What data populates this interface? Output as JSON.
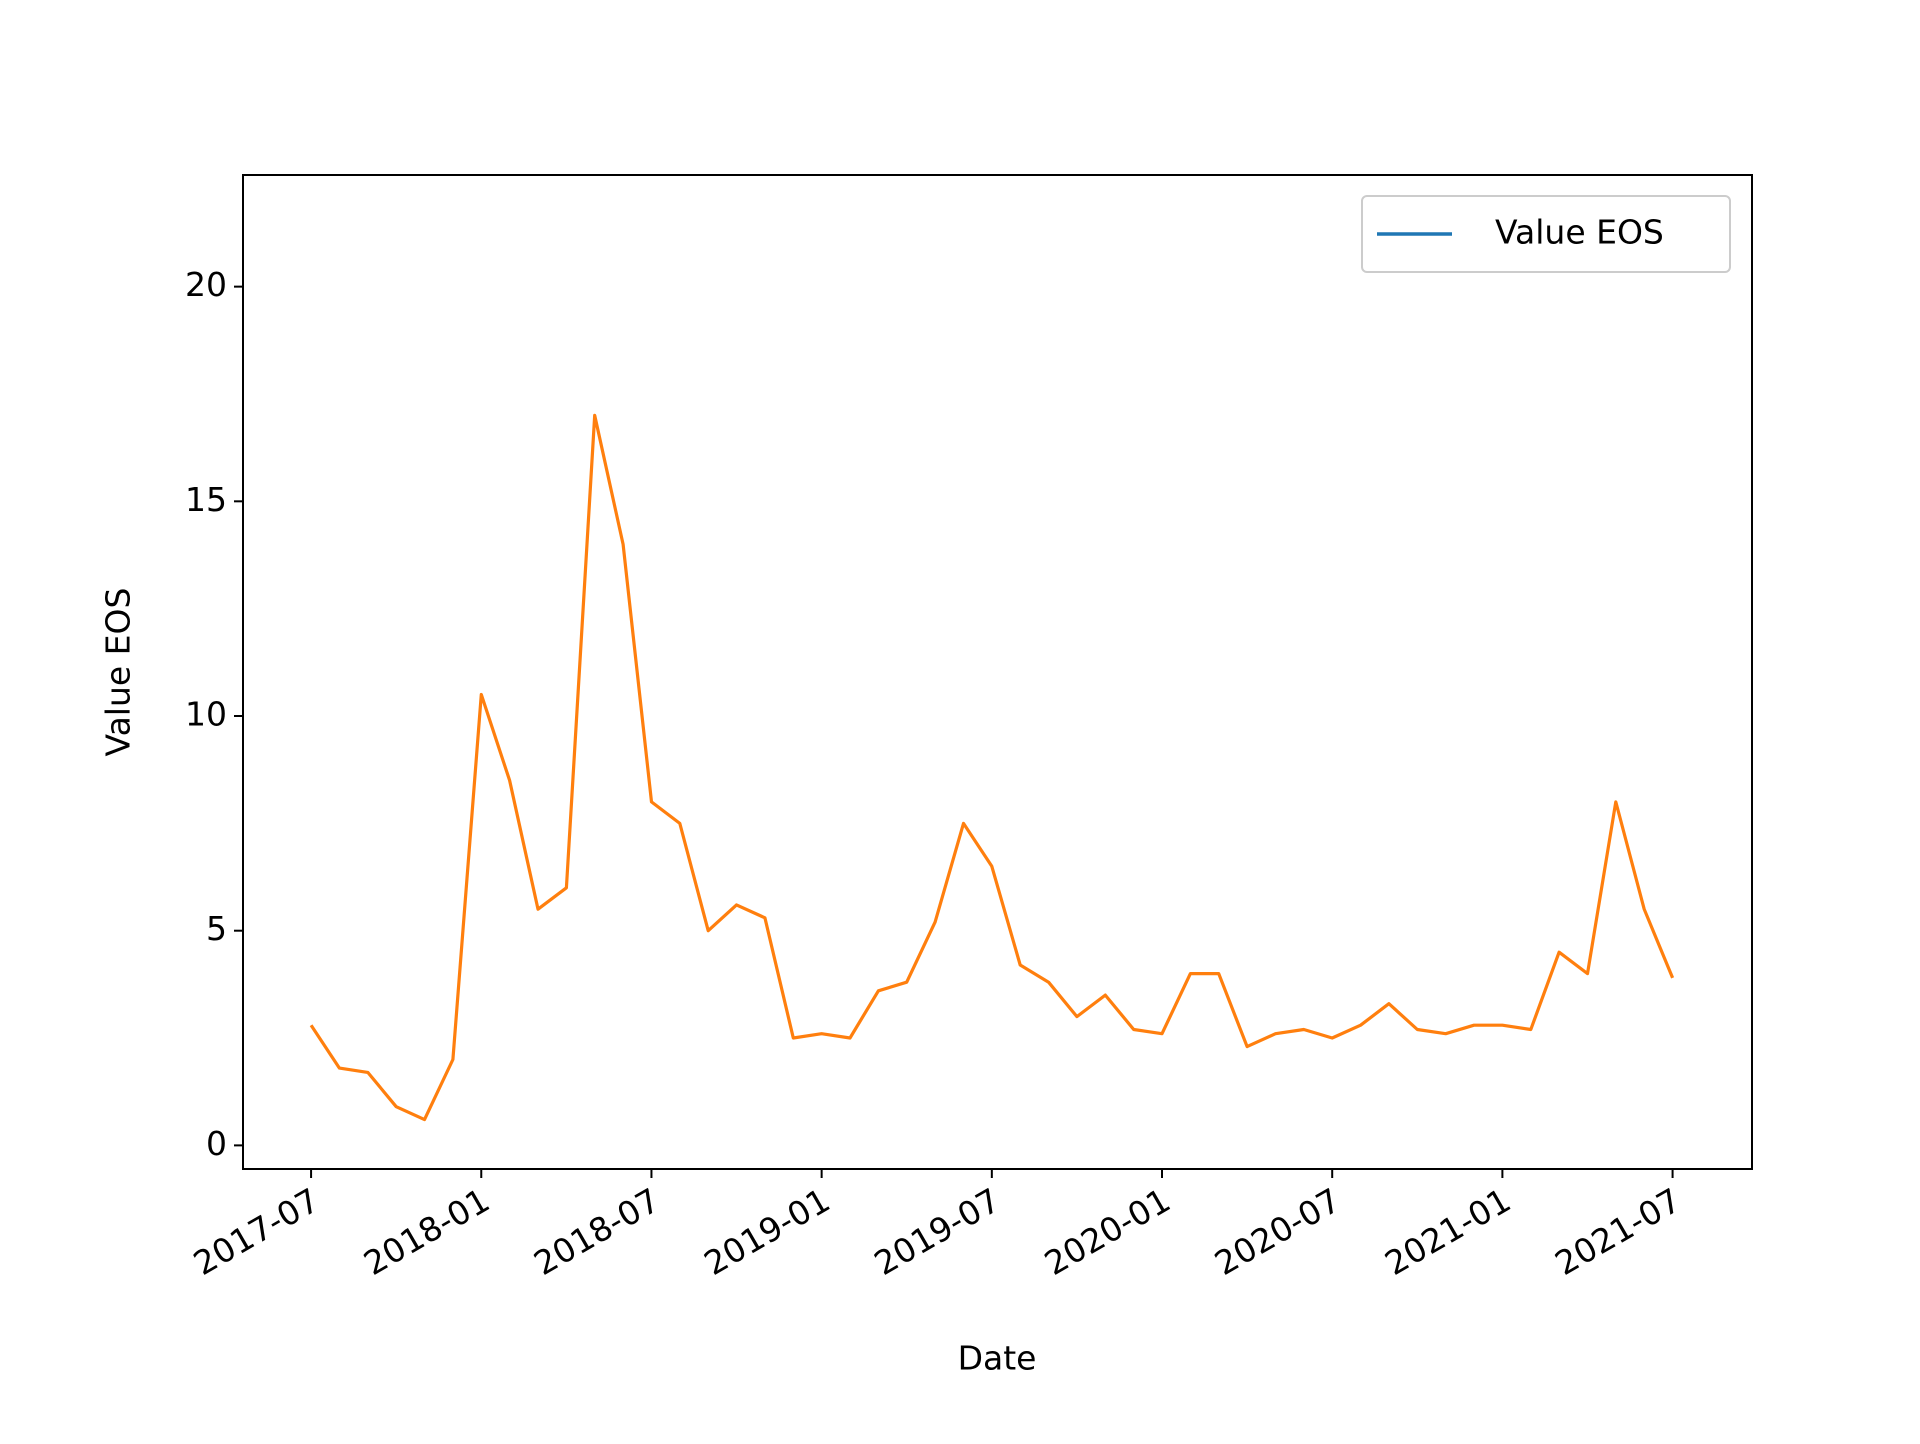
{
  "chart_data": {
    "type": "line",
    "x_label": "Date",
    "y_label": "Value EOS",
    "x": [
      "2017-07",
      "2017-08",
      "2017-09",
      "2017-10",
      "2017-11",
      "2017-12",
      "2018-01",
      "2018-02",
      "2018-03",
      "2018-04",
      "2018-05",
      "2018-06",
      "2018-07",
      "2018-08",
      "2018-09",
      "2018-10",
      "2018-11",
      "2018-12",
      "2019-01",
      "2019-02",
      "2019-03",
      "2019-04",
      "2019-05",
      "2019-06",
      "2019-07",
      "2019-08",
      "2019-09",
      "2019-10",
      "2019-11",
      "2019-12",
      "2020-01",
      "2020-02",
      "2020-03",
      "2020-04",
      "2020-05",
      "2020-06",
      "2020-07",
      "2020-08",
      "2020-09",
      "2020-10",
      "2020-11",
      "2020-12",
      "2021-01",
      "2021-02",
      "2021-03",
      "2021-04",
      "2021-05",
      "2021-06",
      "2021-07"
    ],
    "series": [
      {
        "name": "Value EOS",
        "color": "#ff7f0e",
        "legend_color": "#1f77b4",
        "values": [
          2.8,
          1.8,
          1.7,
          0.9,
          0.6,
          2.0,
          10.5,
          8.5,
          5.5,
          6.0,
          17.0,
          14.0,
          8.0,
          7.5,
          5.0,
          5.6,
          5.3,
          2.5,
          2.6,
          2.5,
          3.6,
          3.8,
          5.2,
          7.5,
          6.5,
          4.2,
          3.8,
          3.0,
          3.5,
          2.7,
          2.6,
          4.0,
          4.0,
          2.3,
          2.6,
          2.7,
          2.5,
          2.8,
          3.3,
          2.7,
          2.6,
          2.8,
          2.8,
          2.7,
          4.5,
          4.0,
          8.0,
          5.5,
          3.9
        ]
      }
    ],
    "ylim": [
      -0.55,
      22.6
    ],
    "yticks": [
      0,
      5,
      10,
      15,
      20
    ],
    "xticks": [
      "2017-07",
      "2018-01",
      "2018-07",
      "2019-01",
      "2019-07",
      "2020-01",
      "2020-07",
      "2021-01",
      "2021-07"
    ],
    "legend": "upper right",
    "grid": false
  }
}
